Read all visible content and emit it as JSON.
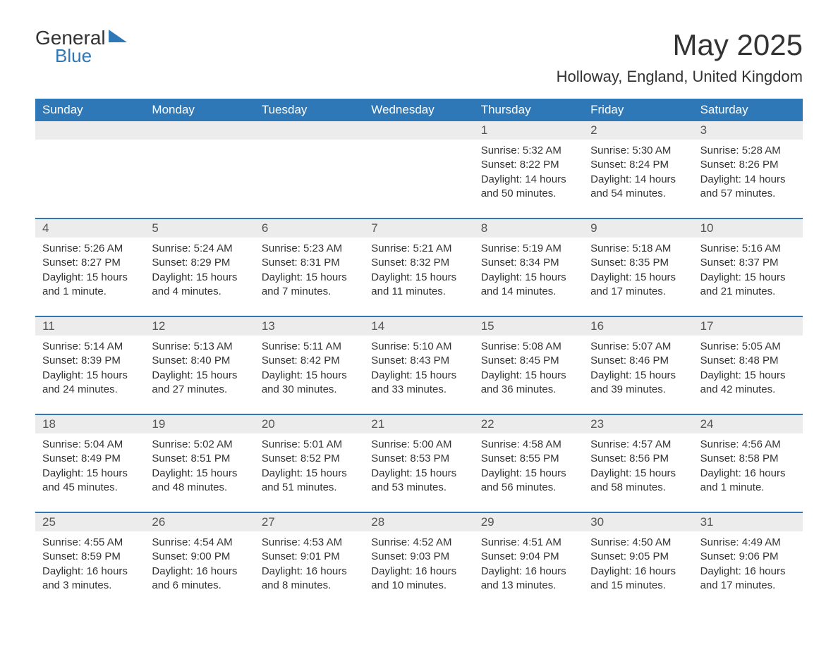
{
  "logo": {
    "text1": "General",
    "text2": "Blue"
  },
  "title": "May 2025",
  "location": "Holloway, England, United Kingdom",
  "colors": {
    "header_bg": "#2f78b7",
    "header_text": "#ffffff",
    "daynum_bg": "#ececec",
    "text": "#333333",
    "divider": "#2f78b7"
  },
  "weekdays": [
    "Sunday",
    "Monday",
    "Tuesday",
    "Wednesday",
    "Thursday",
    "Friday",
    "Saturday"
  ],
  "weeks": [
    {
      "days": [
        {
          "num": "",
          "sunrise": "",
          "sunset": "",
          "daylight": ""
        },
        {
          "num": "",
          "sunrise": "",
          "sunset": "",
          "daylight": ""
        },
        {
          "num": "",
          "sunrise": "",
          "sunset": "",
          "daylight": ""
        },
        {
          "num": "",
          "sunrise": "",
          "sunset": "",
          "daylight": ""
        },
        {
          "num": "1",
          "sunrise": "Sunrise: 5:32 AM",
          "sunset": "Sunset: 8:22 PM",
          "daylight": "Daylight: 14 hours and 50 minutes."
        },
        {
          "num": "2",
          "sunrise": "Sunrise: 5:30 AM",
          "sunset": "Sunset: 8:24 PM",
          "daylight": "Daylight: 14 hours and 54 minutes."
        },
        {
          "num": "3",
          "sunrise": "Sunrise: 5:28 AM",
          "sunset": "Sunset: 8:26 PM",
          "daylight": "Daylight: 14 hours and 57 minutes."
        }
      ]
    },
    {
      "days": [
        {
          "num": "4",
          "sunrise": "Sunrise: 5:26 AM",
          "sunset": "Sunset: 8:27 PM",
          "daylight": "Daylight: 15 hours and 1 minute."
        },
        {
          "num": "5",
          "sunrise": "Sunrise: 5:24 AM",
          "sunset": "Sunset: 8:29 PM",
          "daylight": "Daylight: 15 hours and 4 minutes."
        },
        {
          "num": "6",
          "sunrise": "Sunrise: 5:23 AM",
          "sunset": "Sunset: 8:31 PM",
          "daylight": "Daylight: 15 hours and 7 minutes."
        },
        {
          "num": "7",
          "sunrise": "Sunrise: 5:21 AM",
          "sunset": "Sunset: 8:32 PM",
          "daylight": "Daylight: 15 hours and 11 minutes."
        },
        {
          "num": "8",
          "sunrise": "Sunrise: 5:19 AM",
          "sunset": "Sunset: 8:34 PM",
          "daylight": "Daylight: 15 hours and 14 minutes."
        },
        {
          "num": "9",
          "sunrise": "Sunrise: 5:18 AM",
          "sunset": "Sunset: 8:35 PM",
          "daylight": "Daylight: 15 hours and 17 minutes."
        },
        {
          "num": "10",
          "sunrise": "Sunrise: 5:16 AM",
          "sunset": "Sunset: 8:37 PM",
          "daylight": "Daylight: 15 hours and 21 minutes."
        }
      ]
    },
    {
      "days": [
        {
          "num": "11",
          "sunrise": "Sunrise: 5:14 AM",
          "sunset": "Sunset: 8:39 PM",
          "daylight": "Daylight: 15 hours and 24 minutes."
        },
        {
          "num": "12",
          "sunrise": "Sunrise: 5:13 AM",
          "sunset": "Sunset: 8:40 PM",
          "daylight": "Daylight: 15 hours and 27 minutes."
        },
        {
          "num": "13",
          "sunrise": "Sunrise: 5:11 AM",
          "sunset": "Sunset: 8:42 PM",
          "daylight": "Daylight: 15 hours and 30 minutes."
        },
        {
          "num": "14",
          "sunrise": "Sunrise: 5:10 AM",
          "sunset": "Sunset: 8:43 PM",
          "daylight": "Daylight: 15 hours and 33 minutes."
        },
        {
          "num": "15",
          "sunrise": "Sunrise: 5:08 AM",
          "sunset": "Sunset: 8:45 PM",
          "daylight": "Daylight: 15 hours and 36 minutes."
        },
        {
          "num": "16",
          "sunrise": "Sunrise: 5:07 AM",
          "sunset": "Sunset: 8:46 PM",
          "daylight": "Daylight: 15 hours and 39 minutes."
        },
        {
          "num": "17",
          "sunrise": "Sunrise: 5:05 AM",
          "sunset": "Sunset: 8:48 PM",
          "daylight": "Daylight: 15 hours and 42 minutes."
        }
      ]
    },
    {
      "days": [
        {
          "num": "18",
          "sunrise": "Sunrise: 5:04 AM",
          "sunset": "Sunset: 8:49 PM",
          "daylight": "Daylight: 15 hours and 45 minutes."
        },
        {
          "num": "19",
          "sunrise": "Sunrise: 5:02 AM",
          "sunset": "Sunset: 8:51 PM",
          "daylight": "Daylight: 15 hours and 48 minutes."
        },
        {
          "num": "20",
          "sunrise": "Sunrise: 5:01 AM",
          "sunset": "Sunset: 8:52 PM",
          "daylight": "Daylight: 15 hours and 51 minutes."
        },
        {
          "num": "21",
          "sunrise": "Sunrise: 5:00 AM",
          "sunset": "Sunset: 8:53 PM",
          "daylight": "Daylight: 15 hours and 53 minutes."
        },
        {
          "num": "22",
          "sunrise": "Sunrise: 4:58 AM",
          "sunset": "Sunset: 8:55 PM",
          "daylight": "Daylight: 15 hours and 56 minutes."
        },
        {
          "num": "23",
          "sunrise": "Sunrise: 4:57 AM",
          "sunset": "Sunset: 8:56 PM",
          "daylight": "Daylight: 15 hours and 58 minutes."
        },
        {
          "num": "24",
          "sunrise": "Sunrise: 4:56 AM",
          "sunset": "Sunset: 8:58 PM",
          "daylight": "Daylight: 16 hours and 1 minute."
        }
      ]
    },
    {
      "days": [
        {
          "num": "25",
          "sunrise": "Sunrise: 4:55 AM",
          "sunset": "Sunset: 8:59 PM",
          "daylight": "Daylight: 16 hours and 3 minutes."
        },
        {
          "num": "26",
          "sunrise": "Sunrise: 4:54 AM",
          "sunset": "Sunset: 9:00 PM",
          "daylight": "Daylight: 16 hours and 6 minutes."
        },
        {
          "num": "27",
          "sunrise": "Sunrise: 4:53 AM",
          "sunset": "Sunset: 9:01 PM",
          "daylight": "Daylight: 16 hours and 8 minutes."
        },
        {
          "num": "28",
          "sunrise": "Sunrise: 4:52 AM",
          "sunset": "Sunset: 9:03 PM",
          "daylight": "Daylight: 16 hours and 10 minutes."
        },
        {
          "num": "29",
          "sunrise": "Sunrise: 4:51 AM",
          "sunset": "Sunset: 9:04 PM",
          "daylight": "Daylight: 16 hours and 13 minutes."
        },
        {
          "num": "30",
          "sunrise": "Sunrise: 4:50 AM",
          "sunset": "Sunset: 9:05 PM",
          "daylight": "Daylight: 16 hours and 15 minutes."
        },
        {
          "num": "31",
          "sunrise": "Sunrise: 4:49 AM",
          "sunset": "Sunset: 9:06 PM",
          "daylight": "Daylight: 16 hours and 17 minutes."
        }
      ]
    }
  ]
}
